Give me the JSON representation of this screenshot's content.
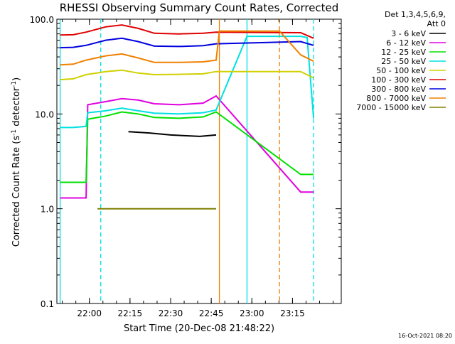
{
  "chart_data": {
    "type": "line",
    "title": "RHESSI Observing Summary Count Rates, Corrected",
    "xlabel": "Start Time (20-Dec-08 21:48:22)",
    "ylabel_main": "Corrected Count Rate (s",
    "ylabel_sup1": "-1",
    "ylabel_mid": " detector",
    "ylabel_sup2": "-1",
    "ylabel_end": ")",
    "yscale": "log",
    "ylim": [
      0.1,
      100.0
    ],
    "xlim_minutes": [
      21.8,
      23.55
    ],
    "x_ticks": [
      {
        "label": "22:00",
        "minutes": 22.0
      },
      {
        "label": "22:15",
        "minutes": 22.25
      },
      {
        "label": "22:30",
        "minutes": 22.5
      },
      {
        "label": "22:45",
        "minutes": 22.75
      },
      {
        "label": "23:00",
        "minutes": 23.0
      },
      {
        "label": "23:15",
        "minutes": 23.25
      }
    ],
    "y_ticks": [
      {
        "label": "100.0",
        "value": 100.0
      },
      {
        "label": "10.0",
        "value": 10.0
      },
      {
        "label": "1.0",
        "value": 1.0
      },
      {
        "label": "0.1",
        "value": 0.1
      }
    ],
    "legend_header": [
      "Det 1,3,4,5,6,9,",
      "Att 0"
    ],
    "legend_position": "right",
    "series": [
      {
        "name": "3 - 6 keV",
        "color": "#000000",
        "points": [
          [
            22.24,
            6.5
          ],
          [
            22.37,
            6.3
          ],
          [
            22.5,
            6.0
          ],
          [
            22.68,
            5.8
          ],
          [
            22.78,
            6.0
          ]
        ]
      },
      {
        "name": "6 - 12 keV",
        "color": "#e000e0",
        "points": [
          [
            21.82,
            1.3
          ],
          [
            21.9,
            1.3
          ],
          [
            21.98,
            1.3
          ],
          [
            21.99,
            12.5
          ],
          [
            22.1,
            13.5
          ],
          [
            22.2,
            14.5
          ],
          [
            22.3,
            14.0
          ],
          [
            22.4,
            12.8
          ],
          [
            22.55,
            12.5
          ],
          [
            22.7,
            13.0
          ],
          [
            22.78,
            15.5
          ],
          [
            23.3,
            1.5
          ],
          [
            23.38,
            1.5
          ]
        ]
      },
      {
        "name": "12 - 25 keV",
        "color": "#00e000",
        "points": [
          [
            21.82,
            1.9
          ],
          [
            21.9,
            1.9
          ],
          [
            21.98,
            1.9
          ],
          [
            21.99,
            8.8
          ],
          [
            22.1,
            9.5
          ],
          [
            22.2,
            10.5
          ],
          [
            22.3,
            10.0
          ],
          [
            22.4,
            9.2
          ],
          [
            22.55,
            9.0
          ],
          [
            22.7,
            9.3
          ],
          [
            22.78,
            10.5
          ],
          [
            23.3,
            2.3
          ],
          [
            23.38,
            2.3
          ]
        ]
      },
      {
        "name": "25 - 50 keV",
        "color": "#00e0e0",
        "points": [
          [
            21.82,
            7.2
          ],
          [
            21.9,
            7.2
          ],
          [
            21.98,
            7.4
          ],
          [
            21.99,
            10.3
          ],
          [
            22.1,
            10.8
          ],
          [
            22.2,
            11.5
          ],
          [
            22.3,
            10.8
          ],
          [
            22.4,
            10.2
          ],
          [
            22.55,
            10.0
          ],
          [
            22.7,
            10.3
          ],
          [
            22.78,
            11.0
          ],
          [
            22.97,
            66.0
          ],
          [
            23.3,
            66.0
          ],
          [
            23.34,
            64.0
          ],
          [
            23.38,
            9.0
          ]
        ]
      },
      {
        "name": "50 - 100 keV",
        "color": "#d0d000",
        "points": [
          [
            21.82,
            23.0
          ],
          [
            21.9,
            23.5
          ],
          [
            21.98,
            26.0
          ],
          [
            22.1,
            28.0
          ],
          [
            22.2,
            29.0
          ],
          [
            22.3,
            27.0
          ],
          [
            22.4,
            26.0
          ],
          [
            22.55,
            26.2
          ],
          [
            22.7,
            26.5
          ],
          [
            22.78,
            28.0
          ],
          [
            23.3,
            28.0
          ],
          [
            23.38,
            24.0
          ]
        ]
      },
      {
        "name": "100 - 300 keV",
        "color": "#e00000",
        "points": [
          [
            21.82,
            68.0
          ],
          [
            21.9,
            68.5
          ],
          [
            21.98,
            73.0
          ],
          [
            22.1,
            83.0
          ],
          [
            22.2,
            87.0
          ],
          [
            22.3,
            80.0
          ],
          [
            22.4,
            71.0
          ],
          [
            22.55,
            70.0
          ],
          [
            22.7,
            71.0
          ],
          [
            22.78,
            73.0
          ],
          [
            23.3,
            72.0
          ],
          [
            23.38,
            63.0
          ]
        ]
      },
      {
        "name": "300 - 800 keV",
        "color": "#0000e0",
        "points": [
          [
            21.82,
            50.0
          ],
          [
            21.9,
            50.5
          ],
          [
            21.98,
            53.0
          ],
          [
            22.1,
            60.0
          ],
          [
            22.2,
            63.0
          ],
          [
            22.3,
            58.0
          ],
          [
            22.4,
            52.0
          ],
          [
            22.55,
            51.5
          ],
          [
            22.7,
            52.5
          ],
          [
            22.78,
            55.0
          ],
          [
            23.3,
            58.0
          ],
          [
            23.38,
            53.0
          ]
        ]
      },
      {
        "name": "800 - 7000 keV",
        "color": "#f08000",
        "points": [
          [
            21.82,
            33.0
          ],
          [
            21.9,
            33.5
          ],
          [
            21.98,
            37.0
          ],
          [
            22.1,
            41.0
          ],
          [
            22.2,
            43.0
          ],
          [
            22.3,
            39.0
          ],
          [
            22.4,
            35.0
          ],
          [
            22.55,
            35.0
          ],
          [
            22.7,
            35.5
          ],
          [
            22.78,
            37.0
          ],
          [
            22.8,
            75.0
          ],
          [
            23.17,
            75.0
          ],
          [
            23.3,
            42.0
          ],
          [
            23.38,
            36.0
          ]
        ]
      },
      {
        "name": "7000 - 15000 keV",
        "color": "#808000",
        "points": [
          [
            22.05,
            1.0
          ],
          [
            22.2,
            1.0
          ],
          [
            22.35,
            1.0
          ],
          [
            22.5,
            1.0
          ],
          [
            22.65,
            1.0
          ],
          [
            22.78,
            1.0
          ]
        ]
      }
    ],
    "vertical_markers": [
      {
        "minutes": 21.82,
        "color": "#00e0e0",
        "style": "solid"
      },
      {
        "minutes": 22.07,
        "color": "#00e0e0",
        "style": "dashed"
      },
      {
        "minutes": 22.8,
        "color": "#f08000",
        "style": "solid"
      },
      {
        "minutes": 22.97,
        "color": "#00e0e0",
        "style": "solid"
      },
      {
        "minutes": 23.17,
        "color": "#f08000",
        "style": "dashed"
      },
      {
        "minutes": 23.38,
        "color": "#00e0e0",
        "style": "dashed"
      }
    ],
    "timestamp": "16-Oct-2021 08:20"
  }
}
